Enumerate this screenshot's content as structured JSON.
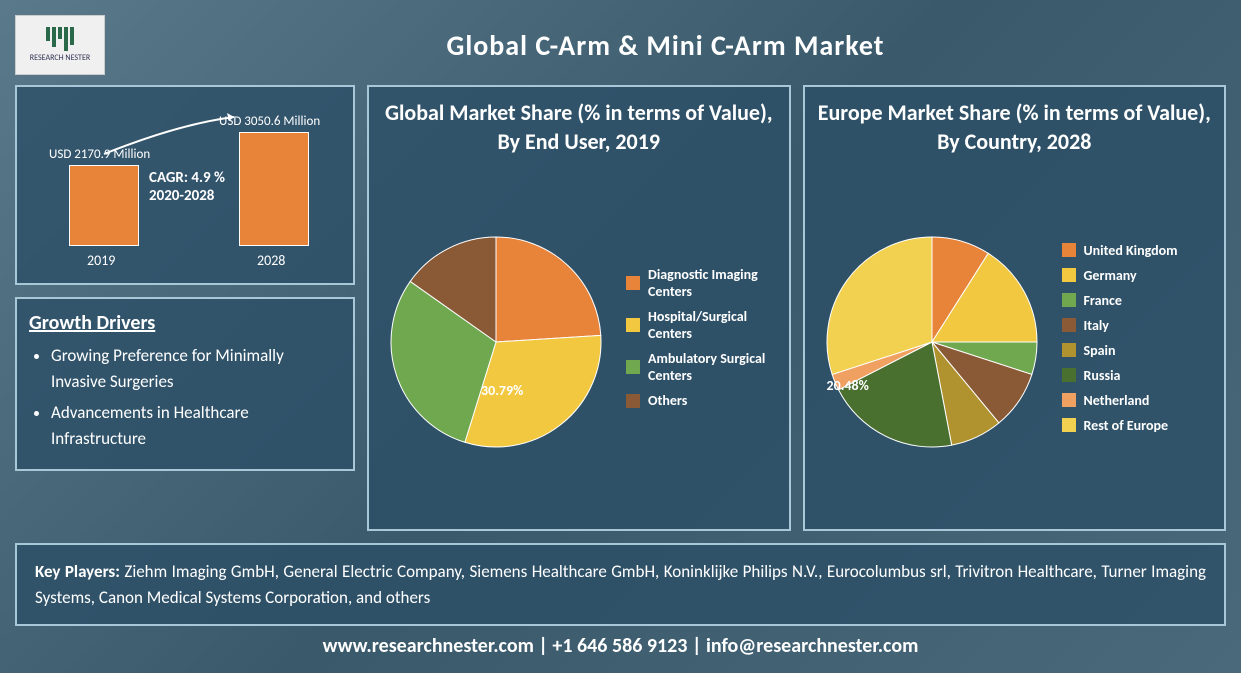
{
  "logo_text": "RESEARCH NESTER",
  "title": "Global C-Arm & Mini C-Arm Market",
  "bar_chart": {
    "type": "bar",
    "categories": [
      "2019",
      "2028"
    ],
    "values": [
      2170.9,
      3050.6
    ],
    "value_labels": [
      "USD  2170.9 Million",
      "USD 3050.6 Million"
    ],
    "bar_colors": [
      "#e8833a",
      "#e8833a"
    ],
    "border_color": "#ffffff",
    "ylim": [
      0,
      3200
    ],
    "cagr_text1": "CAGR: 4.9 %",
    "cagr_text2": "2020-2028",
    "label_fontsize": 14,
    "background": "rgba(44,78,102,0.78)"
  },
  "drivers": {
    "heading": "Growth Drivers",
    "items": [
      "Growing Preference for Minimally Invasive Surgeries",
      "Advancements in Healthcare Infrastructure"
    ]
  },
  "pie1": {
    "type": "pie",
    "title": "Global Market Share (% in terms of Value), By End User, 2019",
    "callout": "30.79%",
    "segments": [
      {
        "label": "Diagnostic Imaging Centers",
        "value": 24,
        "color": "#e8833a"
      },
      {
        "label": "Hospital/Surgical Centers",
        "value": 30.79,
        "color": "#f2c840"
      },
      {
        "label": "Ambulatory Surgical Centers",
        "value": 30,
        "color": "#6fa84f"
      },
      {
        "label": "Others",
        "value": 15.21,
        "color": "#8a5a36"
      }
    ]
  },
  "pie2": {
    "type": "pie",
    "title": "Europe Market Share (% in terms of Value), By Country, 2028",
    "callout": "20.48%",
    "segments": [
      {
        "label": "United Kingdom",
        "value": 9,
        "color": "#e8833a"
      },
      {
        "label": "Germany",
        "value": 16,
        "color": "#f2c840"
      },
      {
        "label": "France",
        "value": 5,
        "color": "#6fa84f"
      },
      {
        "label": "Italy",
        "value": 9,
        "color": "#8a5a36"
      },
      {
        "label": "Spain",
        "value": 8,
        "color": "#b0922e"
      },
      {
        "label": "Russia",
        "value": 20.48,
        "color": "#4a7030"
      },
      {
        "label": "Netherland",
        "value": 2.52,
        "color": "#f0a060"
      },
      {
        "label": "Rest of Europe",
        "value": 30,
        "color": "#f2d050"
      }
    ]
  },
  "key_players": {
    "label": "Key Players:",
    "text": "Ziehm Imaging GmbH, General Electric Company, Siemens Healthcare GmbH, Koninklijke Philips N.V., Eurocolumbus srl, Trivitron Healthcare, Turner Imaging Systems, Canon Medical Systems Corporation, and others"
  },
  "footer": "www.researchnester.com | +1 646 586 9123 | info@researchnester.com",
  "colors": {
    "panel_bg": "rgba(44,78,102,0.78)",
    "panel_border": "#a8c8d8",
    "text": "#ffffff"
  }
}
